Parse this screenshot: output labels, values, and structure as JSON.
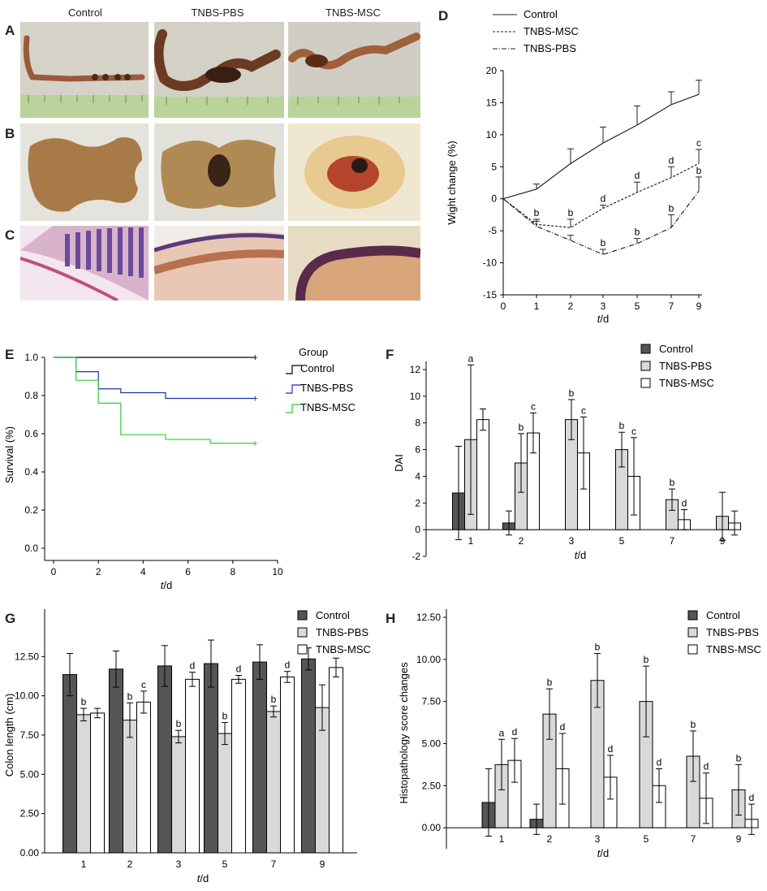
{
  "photos": {
    "column_headers": [
      "Control",
      "TNBS-PBS",
      "TNBS-MSC"
    ],
    "row_letters": [
      "A",
      "B",
      "C"
    ]
  },
  "colors": {
    "control_bar": "#555555",
    "pbs_bar": "#d9d9d9",
    "msc_bar": "#ffffff",
    "survival_control": "#000000",
    "survival_pbs": "#1f2fb0",
    "survival_msc": "#33cc33"
  },
  "chart_data": [
    {
      "panel": "D",
      "type": "line",
      "xlabel_italic": "t",
      "xlabel_rest": "/d",
      "ylabel": "Wight change (%)",
      "categories": [
        "0",
        "1",
        "2",
        "3",
        "5",
        "7",
        "9"
      ],
      "ylim": [
        -15,
        20
      ],
      "yticks": [
        -15,
        -10,
        -5,
        0,
        5,
        10,
        15,
        20
      ],
      "legend": [
        "Control",
        "TNBS-MSC",
        "TNBS-PBS"
      ],
      "series": [
        {
          "name": "Control",
          "style": "solid",
          "values": [
            0,
            1.5,
            5.5,
            8.7,
            11.5,
            14.7,
            16.3
          ],
          "err": [
            0,
            0.8,
            2.3,
            2.5,
            3.0,
            2.0,
            2.2
          ],
          "labels": [
            "",
            "",
            "",
            "",
            "",
            "",
            ""
          ]
        },
        {
          "name": "TNBS-MSC",
          "style": "dashed",
          "values": [
            0,
            -4.0,
            -4.5,
            -1.5,
            1.0,
            3.3,
            5.5
          ],
          "err": [
            0,
            0.8,
            1.3,
            0.5,
            1.6,
            1.7,
            2.2
          ],
          "labels": [
            "",
            "b",
            "b",
            "d",
            "d",
            "d",
            "c"
          ]
        },
        {
          "name": "TNBS-PBS",
          "style": "dashdot",
          "values": [
            0,
            -4.3,
            -6.5,
            -8.7,
            -7.0,
            -4.5,
            1.2
          ],
          "err": [
            0,
            0.8,
            0.8,
            0.8,
            0.8,
            2.0,
            2.2
          ],
          "labels": [
            "",
            "",
            "",
            "b",
            "b",
            "b",
            "b"
          ]
        }
      ]
    },
    {
      "panel": "E",
      "type": "line",
      "xlabel_italic": "t",
      "xlabel_rest": "/d",
      "ylabel": "Survival (%)",
      "xlim": [
        0,
        10
      ],
      "xticks": [
        0,
        2,
        4,
        6,
        8,
        10
      ],
      "ylim": [
        0,
        1
      ],
      "yticks": [
        "0.0",
        "0.2",
        "0.4",
        "0.6",
        "0.8",
        "1.0"
      ],
      "legend_title": "Group",
      "legend": [
        "Control",
        "TNBS-PBS",
        "TNBS-MSC"
      ],
      "series": [
        {
          "name": "Control",
          "steps": [
            [
              0,
              1.0
            ],
            [
              9,
              1.0
            ]
          ]
        },
        {
          "name": "TNBS-PBS",
          "steps": [
            [
              0,
              1.0
            ],
            [
              1,
              0.925
            ],
            [
              2,
              0.835
            ],
            [
              3,
              0.815
            ],
            [
              5,
              0.785
            ],
            [
              9,
              0.785
            ]
          ]
        },
        {
          "name": "TNBS-MSC",
          "steps": [
            [
              0,
              1.0
            ],
            [
              1,
              0.88
            ],
            [
              2,
              0.76
            ],
            [
              3,
              0.595
            ],
            [
              5,
              0.57
            ],
            [
              7,
              0.55
            ],
            [
              9,
              0.55
            ]
          ]
        }
      ]
    },
    {
      "panel": "F",
      "type": "bar",
      "xlabel_italic": "t",
      "xlabel_rest": "/d",
      "ylabel": "DAI",
      "categories": [
        "1",
        "2",
        "3",
        "5",
        "7",
        "9"
      ],
      "ylim": [
        -2,
        12
      ],
      "yticks": [
        "-2",
        "0",
        "2",
        "4",
        "6",
        "8",
        "10",
        "12"
      ],
      "legend": [
        "Control",
        "TNBS-PBS",
        "TNBS-MSC"
      ],
      "series": [
        {
          "name": "Control",
          "values": [
            2.75,
            0.5,
            0,
            0,
            0,
            0
          ],
          "err": [
            3.5,
            0.9,
            0,
            0,
            0,
            0
          ],
          "labels": [
            "",
            "",
            "",
            "",
            "",
            ""
          ]
        },
        {
          "name": "TNBS-PBS",
          "values": [
            6.75,
            5.0,
            8.25,
            6.0,
            2.25,
            1.0
          ],
          "err": [
            5.6,
            2.2,
            1.5,
            1.3,
            0.8,
            1.8
          ],
          "labels": [
            "a",
            "b",
            "b",
            "b",
            "b",
            ""
          ]
        },
        {
          "name": "TNBS-MSC",
          "values": [
            8.25,
            7.25,
            5.75,
            4.0,
            0.75,
            0.5
          ],
          "err": [
            0.8,
            1.5,
            2.7,
            2.9,
            0.75,
            0.9
          ],
          "labels": [
            "",
            "c",
            "c",
            "c",
            "d",
            ""
          ]
        }
      ]
    },
    {
      "panel": "G",
      "type": "bar",
      "xlabel_italic": "t",
      "xlabel_rest": "/d",
      "ylabel": "Colon length (cm)",
      "categories": [
        "1",
        "2",
        "3",
        "5",
        "7",
        "9"
      ],
      "ylim": [
        0,
        15
      ],
      "yticks": [
        "0.00",
        "2.50",
        "5.00",
        "7.50",
        "10.00",
        "12.50"
      ],
      "legend": [
        "Control",
        "TNBS-PBS",
        "TNBS-MSC"
      ],
      "series": [
        {
          "name": "Control",
          "values": [
            11.35,
            11.7,
            11.9,
            12.05,
            12.15,
            12.35
          ],
          "err": [
            1.35,
            1.15,
            1.3,
            1.5,
            1.1,
            0.7
          ],
          "labels": [
            "",
            "",
            "",
            "",
            "",
            ""
          ]
        },
        {
          "name": "TNBS-PBS",
          "values": [
            8.8,
            8.45,
            7.4,
            7.6,
            9.0,
            9.25
          ],
          "err": [
            0.4,
            1.1,
            0.4,
            0.7,
            0.35,
            1.45
          ],
          "labels": [
            "b",
            "b",
            "b",
            "b",
            "b",
            ""
          ]
        },
        {
          "name": "TNBS-MSC",
          "values": [
            8.9,
            9.6,
            11.05,
            11.05,
            11.2,
            11.8
          ],
          "err": [
            0.3,
            0.7,
            0.45,
            0.25,
            0.35,
            0.6
          ],
          "labels": [
            "",
            "c",
            "d",
            "d",
            "d",
            ""
          ]
        }
      ]
    },
    {
      "panel": "H",
      "type": "bar",
      "xlabel_italic": "t",
      "xlabel_rest": "/d",
      "ylabel": "Histopathology score changes",
      "categories": [
        "1",
        "2",
        "3",
        "5",
        "7",
        "9"
      ],
      "ylim": [
        -1.25,
        12.5
      ],
      "yticks": [
        "0.00",
        "2.50",
        "5.00",
        "7.50",
        "10.00",
        "12.50"
      ],
      "legend": [
        "Control",
        "TNBS-PBS",
        "TNBS-MSC"
      ],
      "series": [
        {
          "name": "Control",
          "values": [
            1.5,
            0.5,
            0,
            0,
            0,
            0
          ],
          "err": [
            2.0,
            0.9,
            0,
            0,
            0,
            0
          ],
          "labels": [
            "",
            "",
            "",
            "",
            "",
            ""
          ]
        },
        {
          "name": "TNBS-PBS",
          "values": [
            3.75,
            6.75,
            8.75,
            7.5,
            4.25,
            2.25
          ],
          "err": [
            1.5,
            1.5,
            1.6,
            2.1,
            1.5,
            1.5
          ],
          "labels": [
            "a",
            "b",
            "b",
            "b",
            "b",
            "b"
          ]
        },
        {
          "name": "TNBS-MSC",
          "values": [
            4.0,
            3.5,
            3.0,
            2.5,
            1.75,
            0.5
          ],
          "err": [
            1.3,
            2.1,
            1.3,
            1.0,
            1.5,
            0.9
          ],
          "labels": [
            "d",
            "d",
            "d",
            "d",
            "d",
            "d"
          ]
        }
      ]
    }
  ]
}
